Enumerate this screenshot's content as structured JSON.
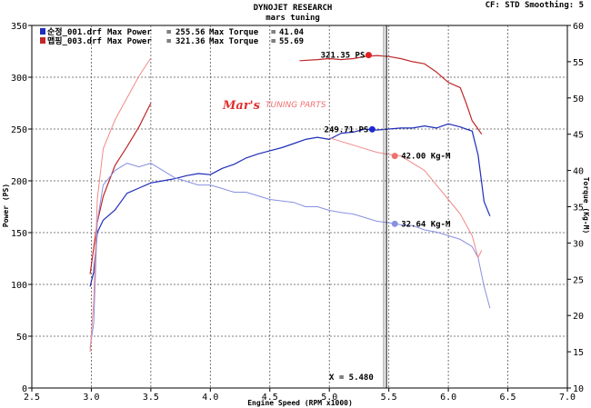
{
  "header": {
    "title": "DYNOJET RESEARCH",
    "subtitle": "mars tuning",
    "status": "CF: STD  Smoothing: 5"
  },
  "logo": {
    "brand": "Mar's",
    "tagline": "TUNING PARTS"
  },
  "legend": [
    {
      "file": "순정_001.drf",
      "power_label": "Max Power",
      "power": "255.56",
      "torque_label": "Max Torque",
      "torque": "41.04",
      "color": "#1f2db8"
    },
    {
      "file": "맵핑_003.drf",
      "power_label": "Max Power",
      "power": "321.36",
      "torque_label": "Max Torque",
      "torque": "55.69",
      "color": "#c0282a"
    }
  ],
  "annotations": {
    "red_power_peak": "321.35 PS",
    "blue_power_peak": "249.71 PS",
    "red_torque_point": "42.00 Kg-M",
    "blue_torque_point": "32.64 Kg-M",
    "cursor": "X = 5.480"
  },
  "chart_data": {
    "type": "line",
    "xlabel": "Engine Speed (RPM x1000)",
    "ylabel": "Power (PS)",
    "y2label": "Torque (Kg-M)",
    "xlim": [
      2.5,
      7.0
    ],
    "ylim": [
      0,
      350
    ],
    "y2lim": [
      10,
      60
    ],
    "x_ticks": [
      "2.5",
      "3.0",
      "3.5",
      "4.0",
      "4.5",
      "5.0",
      "5.5",
      "6.0",
      "6.5",
      "7.0"
    ],
    "y_ticks": [
      "0",
      "50",
      "100",
      "150",
      "200",
      "250",
      "300",
      "350"
    ],
    "y2_ticks": [
      "10",
      "15",
      "20",
      "25",
      "30",
      "35",
      "40",
      "45",
      "50",
      "55",
      "60"
    ],
    "grid": true,
    "cursor_x": 5.48,
    "series": [
      {
        "name": "순정_001.drf Power",
        "axis": "left",
        "color": "#1f2db8",
        "width": 1.2,
        "points": [
          [
            2.99,
            98
          ],
          [
            3.02,
            112
          ],
          [
            3.05,
            150
          ],
          [
            3.1,
            162
          ],
          [
            3.2,
            172
          ],
          [
            3.3,
            188
          ],
          [
            3.4,
            193
          ],
          [
            3.5,
            198
          ],
          [
            3.6,
            200
          ],
          [
            3.7,
            202
          ],
          [
            3.8,
            205
          ],
          [
            3.9,
            207
          ],
          [
            4.0,
            206
          ],
          [
            4.1,
            212
          ],
          [
            4.2,
            216
          ],
          [
            4.3,
            222
          ],
          [
            4.4,
            226
          ],
          [
            4.5,
            229
          ],
          [
            4.6,
            232
          ],
          [
            4.7,
            236
          ],
          [
            4.8,
            240
          ],
          [
            4.9,
            242
          ],
          [
            5.0,
            240
          ],
          [
            5.1,
            246
          ],
          [
            5.2,
            247
          ],
          [
            5.3,
            250
          ],
          [
            5.4,
            249
          ],
          [
            5.5,
            250
          ],
          [
            5.6,
            251
          ],
          [
            5.7,
            251
          ],
          [
            5.8,
            253
          ],
          [
            5.9,
            251
          ],
          [
            6.0,
            255
          ],
          [
            6.1,
            252
          ],
          [
            6.15,
            250
          ],
          [
            6.2,
            248
          ],
          [
            6.25,
            225
          ],
          [
            6.3,
            180
          ],
          [
            6.35,
            166
          ]
        ]
      },
      {
        "name": "맵핑_003.drf Power",
        "axis": "left",
        "color": "#c0282a",
        "width": 1.2,
        "points": [
          [
            2.99,
            110
          ],
          [
            3.05,
            160
          ],
          [
            3.1,
            185
          ],
          [
            3.2,
            215
          ],
          [
            3.3,
            233
          ],
          [
            3.4,
            252
          ],
          [
            3.5,
            275
          ]
        ]
      },
      {
        "name": "맵핑_003.drf Power (post-gap)",
        "axis": "left",
        "color": "#c0282a",
        "width": 1.2,
        "points": [
          [
            4.75,
            316
          ],
          [
            4.9,
            317
          ],
          [
            5.0,
            318
          ],
          [
            5.1,
            317
          ],
          [
            5.2,
            318
          ],
          [
            5.3,
            320
          ],
          [
            5.4,
            321
          ],
          [
            5.5,
            320
          ],
          [
            5.6,
            318
          ],
          [
            5.7,
            315
          ],
          [
            5.8,
            313
          ],
          [
            5.9,
            305
          ],
          [
            6.0,
            295
          ],
          [
            6.1,
            290
          ],
          [
            6.15,
            275
          ],
          [
            6.2,
            258
          ],
          [
            6.25,
            250
          ],
          [
            6.28,
            245
          ]
        ]
      },
      {
        "name": "순정_001.drf Torque",
        "axis": "right",
        "color": "#8890e0",
        "width": 1.0,
        "points": [
          [
            2.99,
            15.5
          ],
          [
            3.02,
            19
          ],
          [
            3.05,
            33
          ],
          [
            3.1,
            38
          ],
          [
            3.2,
            40
          ],
          [
            3.3,
            41
          ],
          [
            3.4,
            40.5
          ],
          [
            3.5,
            41
          ],
          [
            3.6,
            40
          ],
          [
            3.7,
            39
          ],
          [
            3.8,
            38.5
          ],
          [
            3.9,
            38
          ],
          [
            4.0,
            38
          ],
          [
            4.1,
            37.5
          ],
          [
            4.2,
            37
          ],
          [
            4.3,
            37
          ],
          [
            4.4,
            36.5
          ],
          [
            4.5,
            36
          ],
          [
            4.6,
            35.8
          ],
          [
            4.7,
            35.6
          ],
          [
            4.8,
            35
          ],
          [
            4.9,
            35
          ],
          [
            5.0,
            34.5
          ],
          [
            5.1,
            34.2
          ],
          [
            5.2,
            34
          ],
          [
            5.3,
            33.5
          ],
          [
            5.4,
            33
          ],
          [
            5.5,
            32.8
          ],
          [
            5.6,
            32.5
          ],
          [
            5.7,
            32.4
          ],
          [
            5.8,
            31.8
          ],
          [
            5.9,
            31.5
          ],
          [
            6.0,
            31
          ],
          [
            6.1,
            30.5
          ],
          [
            6.2,
            29.5
          ],
          [
            6.25,
            28
          ],
          [
            6.3,
            24
          ],
          [
            6.35,
            21
          ]
        ]
      },
      {
        "name": "맵핑_003.drf Torque",
        "axis": "right",
        "color": "#f08a8a",
        "width": 1.0,
        "points": [
          [
            2.99,
            15
          ],
          [
            3.02,
            22
          ],
          [
            3.05,
            36
          ],
          [
            3.1,
            43
          ],
          [
            3.2,
            47
          ],
          [
            3.3,
            50
          ],
          [
            3.4,
            53
          ],
          [
            3.5,
            55.5
          ]
        ]
      },
      {
        "name": "맵핑_003.drf Torque (post-gap)",
        "axis": "right",
        "color": "#f08a8a",
        "width": 1.0,
        "points": [
          [
            5.0,
            44.5
          ],
          [
            5.1,
            44
          ],
          [
            5.2,
            43.5
          ],
          [
            5.3,
            43
          ],
          [
            5.4,
            42.5
          ],
          [
            5.5,
            42.2
          ],
          [
            5.6,
            42
          ],
          [
            5.7,
            41
          ],
          [
            5.8,
            40
          ],
          [
            5.9,
            38
          ],
          [
            6.0,
            36
          ],
          [
            6.1,
            34
          ],
          [
            6.2,
            31
          ],
          [
            6.25,
            28
          ],
          [
            6.28,
            29
          ]
        ]
      }
    ],
    "markers": [
      {
        "x": 5.33,
        "y": 321.35,
        "axis": "left",
        "color": "#e02020",
        "label_key": "red_power_peak",
        "label_side": "left"
      },
      {
        "x": 5.36,
        "y": 249.71,
        "axis": "left",
        "color": "#1a2ad0",
        "label_key": "blue_power_peak",
        "label_side": "left"
      },
      {
        "x": 5.55,
        "y": 42.0,
        "axis": "right",
        "color": "#f07070",
        "label_key": "red_torque_point",
        "label_side": "right"
      },
      {
        "x": 5.55,
        "y": 32.64,
        "axis": "right",
        "color": "#8890e0",
        "label_key": "blue_torque_point",
        "label_side": "right"
      }
    ]
  }
}
